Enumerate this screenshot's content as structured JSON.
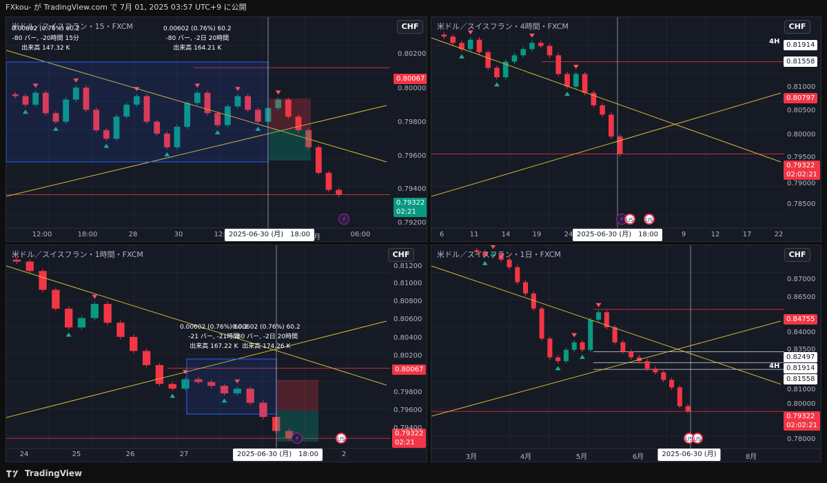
{
  "header": {
    "text": "FXkou- が TradingView.com で 7月 01, 2025 03:57 UTC+9 に公開"
  },
  "footer": {
    "brand": "TradingView"
  },
  "colors": {
    "up": "#089981",
    "down": "#f23645",
    "bg": "#161a25",
    "trendline": "#d4b93a",
    "box": "#2962ff"
  },
  "panels": {
    "p15": {
      "title": "米ドル／スイスフラン・15・FXCM",
      "currency": "CHF",
      "y_ticks": [
        "0.80200",
        "0.80000",
        "0.79800",
        "0.79600",
        "0.79400",
        "0.79200"
      ],
      "x_ticks": [
        "12:00",
        "18:00",
        "28",
        "30",
        "12:00",
        "7月",
        "06:00"
      ],
      "cursor_date": "2025-06-30 (月)　18:00",
      "price_tags": [
        {
          "label": "0.80067",
          "style": "red"
        },
        {
          "label": "0.79322",
          "label2": "02:21",
          "style": "green"
        }
      ],
      "measures": [
        {
          "l1": "0.00602 (0.76%) 60.2",
          "l2": "-80 バー, -20時間 15分",
          "l3": "出来高 147.32 K"
        },
        {
          "l1": "0.00602 (0.76%) 60.2",
          "l2": "-80 バー, -2日 20時間",
          "l3": "出来高 164.21 K"
        }
      ]
    },
    "p4h": {
      "title": "米ドル／スイスフラン・4時間・FXCM",
      "currency": "CHF",
      "y_ticks": [
        "0.81000",
        "0.80500",
        "0.80000",
        "0.79500",
        "0.79000",
        "0.78500"
      ],
      "x_ticks": [
        "6",
        "11",
        "14",
        "19",
        "24",
        "9",
        "12",
        "17",
        "22"
      ],
      "cursor_date": "2025-06-30 (月)　18:00",
      "label_4h": "4H",
      "price_tags": [
        {
          "label": "0.81914",
          "style": "white"
        },
        {
          "label": "0.81558",
          "style": "white"
        },
        {
          "label": "0.80797",
          "style": "red"
        },
        {
          "label": "0.79322",
          "label2": "02:02:21",
          "style": "red"
        }
      ]
    },
    "p1h": {
      "title": "米ドル／スイスフラン・1時間・FXCM",
      "currency": "CHF",
      "y_ticks": [
        "0.81200",
        "0.81000",
        "0.80800",
        "0.80600",
        "0.80400",
        "0.80200",
        "0.79800",
        "0.79600",
        "0.79400"
      ],
      "x_ticks": [
        "24",
        "25",
        "26",
        "27",
        "2",
        "2"
      ],
      "cursor_date": "2025-06-30 (月)　18:00",
      "price_tags": [
        {
          "label": "0.80067",
          "style": "red"
        },
        {
          "label": "0.79322",
          "label2": "02:21",
          "style": "red"
        }
      ],
      "measures": [
        {
          "l1": "0.00602 (0.76%) 60.2",
          "l2": "-21 バー, -21時間",
          "l3": "出来高 167.22 K"
        },
        {
          "l1": "0.00602 (0.76%) 60.2",
          "l2": "-80 バー, -2日 20時間",
          "l3": "出来高 174.26 K"
        }
      ]
    },
    "p1d": {
      "title": "米ドル／スイスフラン・1日・FXCM",
      "currency": "CHF",
      "y_ticks": [
        "0.87000",
        "0.86500",
        "0.84000",
        "0.83500",
        "0.81000",
        "0.80000",
        "0.78000"
      ],
      "x_ticks": [
        "3月",
        "4月",
        "5月",
        "6月",
        "8月"
      ],
      "cursor_date": "2025-06-30 (月)",
      "label_4h": "4H",
      "price_tags": [
        {
          "label": "0.84755",
          "style": "red"
        },
        {
          "label": "0.82497",
          "style": "white"
        },
        {
          "label": "0.81914",
          "style": "white"
        },
        {
          "label": "0.81558",
          "style": "white"
        },
        {
          "label": "0.79322",
          "label2": "02:02:21",
          "style": "red"
        }
      ]
    }
  },
  "chart_data": [
    {
      "type": "candlestick",
      "title": "米ドル／スイスフラン・15・FXCM",
      "ylim": [
        0.7915,
        0.8025
      ],
      "closes": [
        0.799,
        0.7985,
        0.7992,
        0.798,
        0.7975,
        0.7988,
        0.7995,
        0.7982,
        0.797,
        0.7965,
        0.7978,
        0.7985,
        0.799,
        0.7975,
        0.7968,
        0.796,
        0.7972,
        0.7986,
        0.7992,
        0.798,
        0.7973,
        0.7984,
        0.799,
        0.7982,
        0.7975,
        0.7983,
        0.7988,
        0.7978,
        0.797,
        0.796,
        0.7945,
        0.7935,
        0.7932
      ],
      "levels": [
        0.80067,
        0.79322
      ]
    },
    {
      "type": "candlestick",
      "title": "米ドル／スイスフラン・4時間・FXCM",
      "ylim": [
        0.782,
        0.814
      ],
      "closes": [
        0.812,
        0.811,
        0.81,
        0.8115,
        0.8095,
        0.807,
        0.8055,
        0.808,
        0.809,
        0.81,
        0.811,
        0.8105,
        0.809,
        0.806,
        0.804,
        0.806,
        0.803,
        0.801,
        0.7995,
        0.796,
        0.7932
      ],
      "levels": [
        0.81914,
        0.81558,
        0.80797,
        0.79322
      ]
    },
    {
      "type": "candlestick",
      "title": "米ドル／スイスフラン・1時間・FXCM",
      "ylim": [
        0.7925,
        0.813
      ],
      "closes": [
        0.812,
        0.811,
        0.809,
        0.807,
        0.805,
        0.806,
        0.8075,
        0.8055,
        0.804,
        0.8025,
        0.801,
        0.799,
        0.7985,
        0.7995,
        0.7992,
        0.7988,
        0.798,
        0.7985,
        0.797,
        0.7955,
        0.794,
        0.7932
      ],
      "levels": [
        0.80067,
        0.79322
      ]
    },
    {
      "type": "candlestick",
      "title": "米ドル／スイスフラン・1日・FXCM",
      "ylim": [
        0.776,
        0.878
      ],
      "closes": [
        0.878,
        0.876,
        0.877,
        0.874,
        0.87,
        0.862,
        0.856,
        0.848,
        0.832,
        0.822,
        0.82,
        0.826,
        0.83,
        0.826,
        0.842,
        0.846,
        0.838,
        0.83,
        0.825,
        0.822,
        0.82,
        0.816,
        0.814,
        0.81,
        0.806,
        0.796,
        0.7932
      ],
      "levels": [
        0.84755,
        0.82497,
        0.81914,
        0.81558,
        0.79322
      ]
    }
  ]
}
